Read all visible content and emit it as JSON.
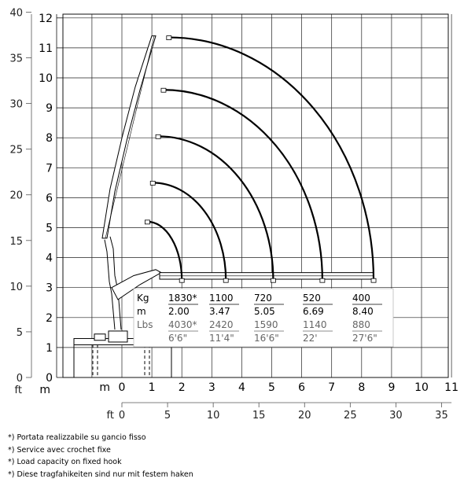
{
  "chart_data": {
    "type": "diagram",
    "left_axis": {
      "unit_ft": "ft",
      "unit_m": "m",
      "ft_ticks": [
        "0",
        "5",
        "10",
        "15",
        "20",
        "25",
        "30",
        "35",
        "40"
      ],
      "m_ticks": [
        "0",
        "1",
        "2",
        "3",
        "4",
        "5",
        "6",
        "7",
        "8",
        "9",
        "10",
        "11",
        "12"
      ]
    },
    "bottom_axis": {
      "unit_m": "m",
      "unit_ft": "ft",
      "m_ticks": [
        "0",
        "1",
        "2",
        "3",
        "4",
        "5",
        "6",
        "7",
        "8",
        "9",
        "10",
        "11"
      ],
      "ft_ticks": [
        "0",
        "5",
        "10",
        "15",
        "20",
        "25",
        "30",
        "35"
      ]
    },
    "reach_arcs_m": [
      {
        "outreach": 2.0,
        "max_height": 5.2
      },
      {
        "outreach": 3.47,
        "max_height": 6.5
      },
      {
        "outreach": 5.05,
        "max_height": 8.05
      },
      {
        "outreach": 6.69,
        "max_height": 9.6
      },
      {
        "outreach": 8.4,
        "max_height": 11.35
      }
    ],
    "capacity_table": {
      "kg_label": "Kg",
      "m_label": "m",
      "lbs_label": "Lbs",
      "kg": [
        "1830*",
        "1100",
        "720",
        "520",
        "400"
      ],
      "m": [
        "2.00",
        "3.47",
        "5.05",
        "6.69",
        "8.40"
      ],
      "lbs": [
        "4030*",
        "2420",
        "1590",
        "1140",
        "880"
      ],
      "ft": [
        "6'6\"",
        "11'4\"",
        "16'6\"",
        "22'",
        "27'6\""
      ]
    }
  },
  "notes": [
    "*) Portata realizzabile su gancio fisso",
    "*) Service avec crochet fixe",
    "*) Load capacity on fixed hook",
    "*) Diese tragfahikeiten sind nur mit festem haken"
  ]
}
